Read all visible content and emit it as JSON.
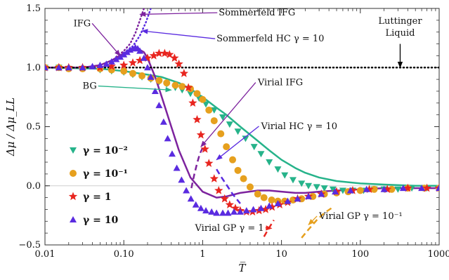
{
  "chart_data": {
    "type": "scatter",
    "title": "",
    "xlabel": "T̅",
    "ylabel": "Δμ / Δμ_LL",
    "xscale": "log",
    "xlim": [
      0.01,
      1000
    ],
    "ylim": [
      -0.5,
      1.5
    ],
    "x_tick_labels": [
      "0.01",
      "0.10",
      "1",
      "10",
      "100",
      "1000"
    ],
    "x_tick_values": [
      0.01,
      0.1,
      1,
      10,
      100,
      1000
    ],
    "y_tick_labels": [
      "−0.5",
      "0.0",
      "0.5",
      "1.0",
      "1.5"
    ],
    "y_tick_values": [
      -0.5,
      0,
      0.5,
      1.0,
      1.5
    ],
    "legend_position": "left",
    "legend": [
      {
        "label": "γ = 10⁻²",
        "marker": "triangle-down",
        "color": "#26b38a"
      },
      {
        "label": "γ = 10⁻¹",
        "marker": "circle",
        "color": "#e6a01e"
      },
      {
        "label": "γ = 1",
        "marker": "star",
        "color": "#e8251f"
      },
      {
        "label": "γ = 10",
        "marker": "triangle-up",
        "color": "#5a2be0"
      }
    ],
    "series": [
      {
        "key": "bg_points",
        "marker": "triangle-down",
        "color": "#26b38a",
        "x": [
          0.01,
          0.015,
          0.02,
          0.03,
          0.05,
          0.07,
          0.1,
          0.13,
          0.17,
          0.22,
          0.28,
          0.35,
          0.45,
          0.55,
          0.7,
          0.9,
          1.1,
          1.4,
          1.8,
          2.2,
          2.8,
          3.5,
          4.5,
          5.5,
          7,
          9,
          11,
          14,
          18,
          22,
          28,
          35,
          45,
          60,
          80,
          110,
          150,
          200,
          300,
          450,
          700,
          1000
        ],
        "y": [
          1.0,
          1.0,
          0.99,
          0.99,
          0.98,
          0.97,
          0.96,
          0.94,
          0.92,
          0.9,
          0.88,
          0.86,
          0.83,
          0.81,
          0.78,
          0.74,
          0.69,
          0.64,
          0.58,
          0.52,
          0.46,
          0.4,
          0.33,
          0.27,
          0.2,
          0.14,
          0.09,
          0.05,
          0.02,
          0.0,
          -0.01,
          -0.02,
          -0.03,
          -0.04,
          -0.04,
          -0.04,
          -0.03,
          -0.03,
          -0.03,
          -0.02,
          -0.02,
          -0.02
        ]
      },
      {
        "key": "gamma01_points",
        "marker": "circle",
        "color": "#e6a01e",
        "x": [
          0.01,
          0.015,
          0.02,
          0.03,
          0.05,
          0.07,
          0.1,
          0.13,
          0.17,
          0.22,
          0.28,
          0.35,
          0.45,
          0.55,
          0.7,
          0.85,
          1.0,
          1.2,
          1.4,
          1.7,
          2.0,
          2.4,
          2.8,
          3.3,
          4.0,
          5.0,
          6.0,
          7.5,
          9,
          11,
          14,
          18,
          25,
          35,
          50,
          70,
          100,
          150,
          250,
          400,
          650,
          1000
        ],
        "y": [
          1.0,
          1.0,
          0.99,
          0.99,
          0.99,
          0.98,
          0.97,
          0.95,
          0.93,
          0.91,
          0.89,
          0.87,
          0.85,
          0.84,
          0.82,
          0.78,
          0.73,
          0.64,
          0.55,
          0.44,
          0.33,
          0.22,
          0.13,
          0.06,
          -0.01,
          -0.07,
          -0.1,
          -0.12,
          -0.13,
          -0.13,
          -0.12,
          -0.11,
          -0.09,
          -0.07,
          -0.06,
          -0.05,
          -0.04,
          -0.03,
          -0.03,
          -0.02,
          -0.02,
          -0.02
        ]
      },
      {
        "key": "gamma1_points",
        "marker": "star",
        "color": "#e8251f",
        "x": [
          0.01,
          0.015,
          0.02,
          0.03,
          0.05,
          0.07,
          0.1,
          0.13,
          0.16,
          0.2,
          0.24,
          0.28,
          0.33,
          0.38,
          0.44,
          0.5,
          0.58,
          0.66,
          0.75,
          0.85,
          0.95,
          1.07,
          1.2,
          1.4,
          1.6,
          1.9,
          2.2,
          2.6,
          3.0,
          3.6,
          4.3,
          5.2,
          6.3,
          7.6,
          9.5,
          12,
          16,
          22,
          32,
          50,
          80,
          130,
          220,
          400,
          700,
          1000
        ],
        "y": [
          1.0,
          1.0,
          1.0,
          1.0,
          1.0,
          1.01,
          1.02,
          1.04,
          1.06,
          1.08,
          1.1,
          1.12,
          1.12,
          1.11,
          1.08,
          1.03,
          0.95,
          0.83,
          0.7,
          0.56,
          0.43,
          0.31,
          0.19,
          0.06,
          -0.04,
          -0.11,
          -0.16,
          -0.19,
          -0.21,
          -0.22,
          -0.22,
          -0.21,
          -0.2,
          -0.18,
          -0.16,
          -0.14,
          -0.11,
          -0.09,
          -0.07,
          -0.05,
          -0.04,
          -0.03,
          -0.03,
          -0.02,
          -0.02,
          -0.02
        ]
      },
      {
        "key": "gamma10_points",
        "marker": "triangle-up",
        "color": "#5a2be0",
        "x": [
          0.01,
          0.015,
          0.02,
          0.03,
          0.04,
          0.05,
          0.06,
          0.07,
          0.08,
          0.09,
          0.1,
          0.11,
          0.12,
          0.13,
          0.14,
          0.15,
          0.16,
          0.18,
          0.2,
          0.22,
          0.25,
          0.28,
          0.32,
          0.36,
          0.41,
          0.47,
          0.54,
          0.62,
          0.71,
          0.82,
          0.95,
          1.1,
          1.3,
          1.5,
          1.8,
          2.1,
          2.5,
          3.0,
          3.6,
          4.4,
          5.5,
          7,
          9,
          12,
          16,
          22,
          32,
          48,
          75,
          120,
          200,
          350,
          600,
          1000
        ],
        "y": [
          1.0,
          1.0,
          1.0,
          1.0,
          1.01,
          1.02,
          1.03,
          1.05,
          1.07,
          1.09,
          1.11,
          1.13,
          1.15,
          1.16,
          1.17,
          1.16,
          1.14,
          1.08,
          1.0,
          0.92,
          0.8,
          0.68,
          0.54,
          0.4,
          0.27,
          0.15,
          0.05,
          -0.04,
          -0.11,
          -0.16,
          -0.19,
          -0.21,
          -0.22,
          -0.23,
          -0.23,
          -0.23,
          -0.22,
          -0.22,
          -0.21,
          -0.2,
          -0.19,
          -0.17,
          -0.15,
          -0.13,
          -0.11,
          -0.09,
          -0.07,
          -0.05,
          -0.04,
          -0.03,
          -0.03,
          -0.02,
          -0.02,
          -0.02
        ]
      },
      {
        "key": "bg_curve",
        "line": "solid",
        "color": "#26b38a",
        "x": [
          0.01,
          0.05,
          0.1,
          0.2,
          0.3,
          0.5,
          0.7,
          1,
          1.5,
          2,
          3,
          5,
          7,
          10,
          15,
          20,
          30,
          50,
          100,
          200,
          500,
          1000
        ],
        "y": [
          1.0,
          0.99,
          0.97,
          0.94,
          0.92,
          0.87,
          0.82,
          0.75,
          0.66,
          0.6,
          0.5,
          0.38,
          0.3,
          0.22,
          0.15,
          0.11,
          0.07,
          0.04,
          0.02,
          0.01,
          0.0,
          0.0
        ]
      },
      {
        "key": "ifg_curve",
        "line": "solid",
        "color": "#7d239e",
        "x": [
          0.01,
          0.03,
          0.05,
          0.07,
          0.1,
          0.12,
          0.15,
          0.18,
          0.2,
          0.25,
          0.3,
          0.4,
          0.5,
          0.7,
          1.0,
          1.5,
          2,
          3,
          5,
          7,
          10,
          15,
          20,
          30,
          50,
          100,
          200,
          500,
          1000
        ],
        "y": [
          1.0,
          1.0,
          1.02,
          1.06,
          1.12,
          1.15,
          1.16,
          1.13,
          1.08,
          0.92,
          0.76,
          0.5,
          0.3,
          0.07,
          -0.05,
          -0.1,
          -0.09,
          -0.06,
          -0.04,
          -0.04,
          -0.05,
          -0.06,
          -0.06,
          -0.05,
          -0.04,
          -0.03,
          -0.02,
          -0.02,
          -0.02
        ]
      },
      {
        "key": "sommerfeld_ifg",
        "line": "dotted",
        "color": "#7d239e",
        "x": [
          0.08,
          0.1,
          0.12,
          0.14,
          0.16,
          0.18
        ],
        "y": [
          1.09,
          1.14,
          1.2,
          1.29,
          1.4,
          1.5
        ]
      },
      {
        "key": "sommerfeld_hc",
        "line": "dotted",
        "color": "#5a2be0",
        "x": [
          0.1,
          0.13,
          0.16,
          0.19,
          0.22
        ],
        "y": [
          1.12,
          1.18,
          1.27,
          1.38,
          1.5
        ]
      },
      {
        "key": "virial_ifg",
        "line": "dashed",
        "color": "#7d239e",
        "x": [
          0.72,
          0.78,
          0.85,
          0.92,
          1.0
        ],
        "y": [
          -0.02,
          0.09,
          0.19,
          0.27,
          0.32
        ]
      },
      {
        "key": "virial_hc",
        "line": "dashed",
        "color": "#5a2be0",
        "x": [
          1.5,
          1.7,
          2.0,
          2.4,
          3.0
        ],
        "y": [
          0.14,
          0.08,
          0.01,
          -0.07,
          -0.15
        ]
      },
      {
        "key": "virial_gp_1",
        "line": "dashed",
        "color": "#e8251f",
        "x": [
          6,
          6.5,
          7.2,
          8
        ],
        "y": [
          -0.43,
          -0.39,
          -0.34,
          -0.29
        ]
      },
      {
        "key": "virial_gp_01",
        "line": "dashed",
        "color": "#e6a01e",
        "x": [
          18,
          22,
          28,
          35,
          45
        ],
        "y": [
          -0.44,
          -0.37,
          -0.29,
          -0.23,
          -0.18
        ]
      },
      {
        "key": "luttinger_ref",
        "line": "dotted",
        "color": "#000000",
        "x": [
          0.01,
          1000
        ],
        "y": [
          1.0,
          1.0
        ]
      }
    ],
    "annotations": [
      {
        "text": "IFG",
        "x": 0.023,
        "y": 1.35,
        "arrow_to": [
          0.09,
          1.1
        ],
        "arrow_color": "#7d239e"
      },
      {
        "text": "Sommerfeld IFG",
        "x": 1.6,
        "y": 1.44,
        "arrow_to": [
          0.16,
          1.45
        ],
        "arrow_color": "#7d239e"
      },
      {
        "text": "Sommerfeld HC γ = 10",
        "x": 1.5,
        "y": 1.22,
        "arrow_to": [
          0.17,
          1.31
        ],
        "arrow_color": "#5a2be0"
      },
      {
        "text": "Luttinger",
        "x": 320,
        "y": 1.37,
        "arrow_to": [
          320,
          1.0
        ],
        "arrow_color": "#000000"
      },
      {
        "text": "Liquid",
        "x": 320,
        "y": 1.27
      },
      {
        "text": "BG",
        "x": 0.03,
        "y": 0.82,
        "arrow_to": [
          0.4,
          0.81
        ],
        "arrow_color": "#26b38a"
      },
      {
        "text": "Virial IFG",
        "x": 5,
        "y": 0.85,
        "arrow_to": [
          0.95,
          0.33
        ],
        "arrow_color": "#7d239e"
      },
      {
        "text": "Virial HC γ = 10",
        "x": 5.5,
        "y": 0.48,
        "arrow_to": [
          1.5,
          0.22
        ],
        "arrow_color": "#5a2be0"
      },
      {
        "text": "Virial GP γ = 1",
        "x": 0.8,
        "y": -0.38,
        "arrow_to": [
          7.5,
          -0.36
        ],
        "arrow_color": "#e8251f"
      },
      {
        "text": "Virial GP γ = 10⁻¹",
        "x": 30,
        "y": -0.28,
        "arrow_to": [
          22,
          -0.33
        ],
        "arrow_color": "#e6a01e"
      }
    ]
  }
}
